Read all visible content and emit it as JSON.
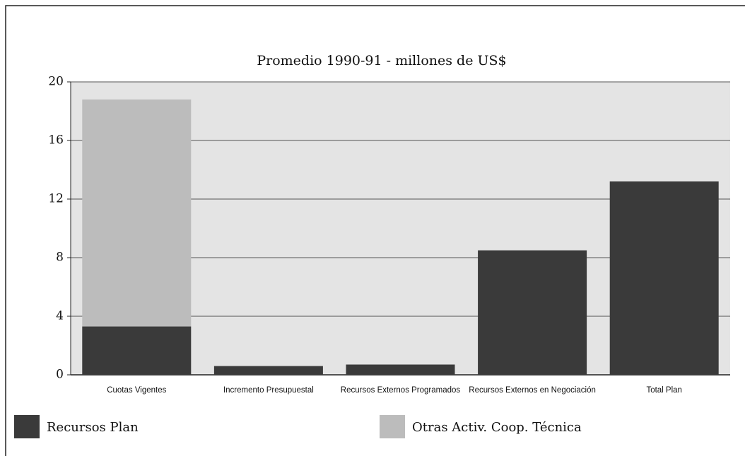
{
  "chart_data": {
    "type": "stacked_bar",
    "title": "Promedio 1990-91   -   millones de US$",
    "categories": [
      "Cuotas Vigentes",
      "Incremento Presupuestal",
      "Recursos Externos Programados",
      "Recursos Externos en Negociación",
      "Total Plan"
    ],
    "series": [
      {
        "name": "Recursos Plan",
        "color": "#3a3a3a",
        "values": [
          3.3,
          0.6,
          0.7,
          8.5,
          13.2
        ]
      },
      {
        "name": "Otras Activ. Coop. Técnica",
        "color": "#bcbcbc",
        "values": [
          15.5,
          0,
          0,
          0,
          0
        ]
      }
    ],
    "ylim": [
      0,
      20
    ],
    "yticks": [
      0,
      4,
      8,
      12,
      16,
      20
    ],
    "grid": true
  }
}
